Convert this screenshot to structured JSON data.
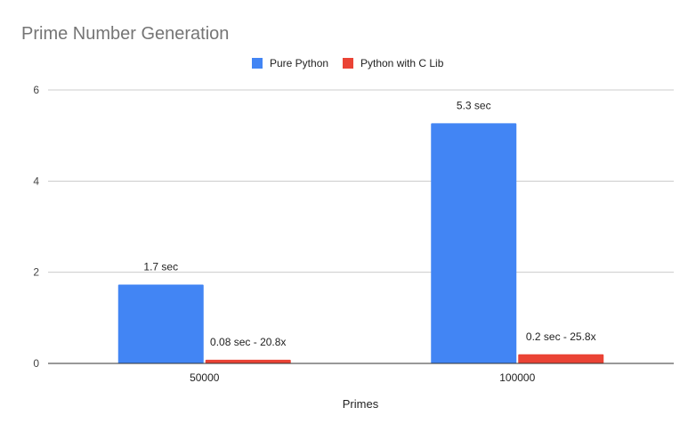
{
  "chart_data": {
    "type": "bar",
    "title": "Prime Number Generation",
    "xlabel": "Primes",
    "ylabel": "",
    "categories": [
      "50000",
      "100000"
    ],
    "ylim": [
      0,
      6
    ],
    "yticks": [
      0,
      2,
      4,
      6
    ],
    "grid": true,
    "legend_position": "top-center",
    "series": [
      {
        "name": "Pure Python",
        "color": "#4285f4",
        "values": [
          1.73,
          5.27
        ],
        "labels": [
          "1.7 sec",
          "5.3 sec"
        ]
      },
      {
        "name": "Python with C Lib",
        "color": "#ea4335",
        "values": [
          0.08,
          0.2
        ],
        "labels": [
          "0.08 sec - 20.8x",
          "0.2 sec - 25.8x"
        ]
      }
    ]
  }
}
